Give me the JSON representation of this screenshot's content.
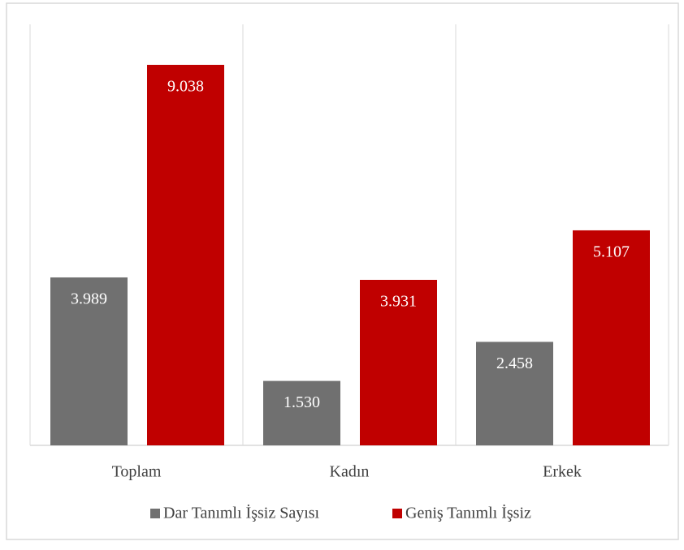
{
  "chart_data": {
    "type": "bar",
    "categories": [
      "Toplam",
      "Kadın",
      "Erkek"
    ],
    "series": [
      {
        "name": "Dar Tanımlı İşsiz Sayısı",
        "color": "#707070",
        "values": [
          3.989,
          1.53,
          2.458
        ],
        "value_labels": [
          "3.989",
          "1.530",
          "2.458"
        ]
      },
      {
        "name": "Geniş Tanımlı İşsiz",
        "color": "#c00000",
        "values": [
          9.038,
          3.931,
          5.107
        ],
        "value_labels": [
          "9.038",
          "3.931",
          "5.107"
        ]
      }
    ],
    "ylim": [
      0,
      10
    ]
  }
}
